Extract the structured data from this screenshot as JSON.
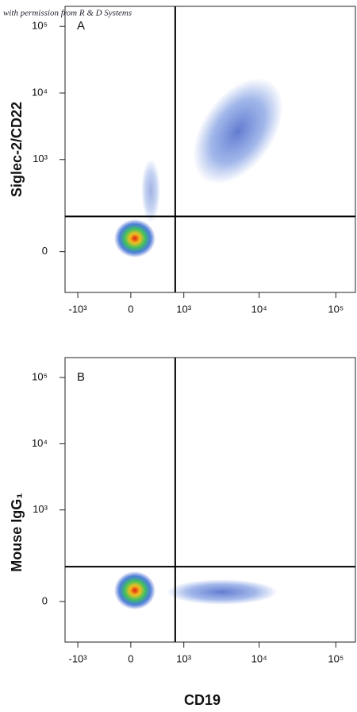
{
  "note": "with permission from R & D Systems",
  "chart_data": [
    {
      "type": "scatter",
      "panel_label": "A",
      "ylabel": "Siglec-2/CD22",
      "xscale": "biexponential",
      "yscale": "biexponential",
      "xlim": [
        -1500,
        180000
      ],
      "ylim": [
        -160,
        200000
      ],
      "xticks": [
        {
          "value": -1000,
          "label": "-10³"
        },
        0,
        {
          "value": 1000,
          "label": "10³"
        },
        {
          "value": 10000,
          "label": "10⁴"
        },
        {
          "value": 100000,
          "label": "10⁵"
        }
      ],
      "yticks": [
        0,
        {
          "value": 1000,
          "label": "10³"
        },
        {
          "value": 10000,
          "label": "10⁴"
        },
        {
          "value": 100000,
          "label": "10⁵"
        }
      ],
      "gate": {
        "x": 750,
        "y": 128
      }
    },
    {
      "type": "scatter",
      "panel_label": "B",
      "ylabel": "Mouse IgG₁",
      "xlabel": "CD19",
      "xscale": "biexponential",
      "yscale": "biexponential",
      "xlim": [
        -1500,
        180000
      ],
      "ylim": [
        -160,
        200000
      ],
      "xticks": [
        {
          "value": -1000,
          "label": "-10³"
        },
        0,
        {
          "value": 1000,
          "label": "10³"
        },
        {
          "value": 10000,
          "label": "10⁴"
        },
        {
          "value": 100000,
          "label": "10⁵"
        }
      ],
      "yticks": [
        0,
        {
          "value": 1000,
          "label": "10³"
        },
        {
          "value": 10000,
          "label": "10⁴"
        },
        {
          "value": 100000,
          "label": "10⁵"
        }
      ],
      "gate": {
        "x": 750,
        "y": 127
      }
    }
  ]
}
